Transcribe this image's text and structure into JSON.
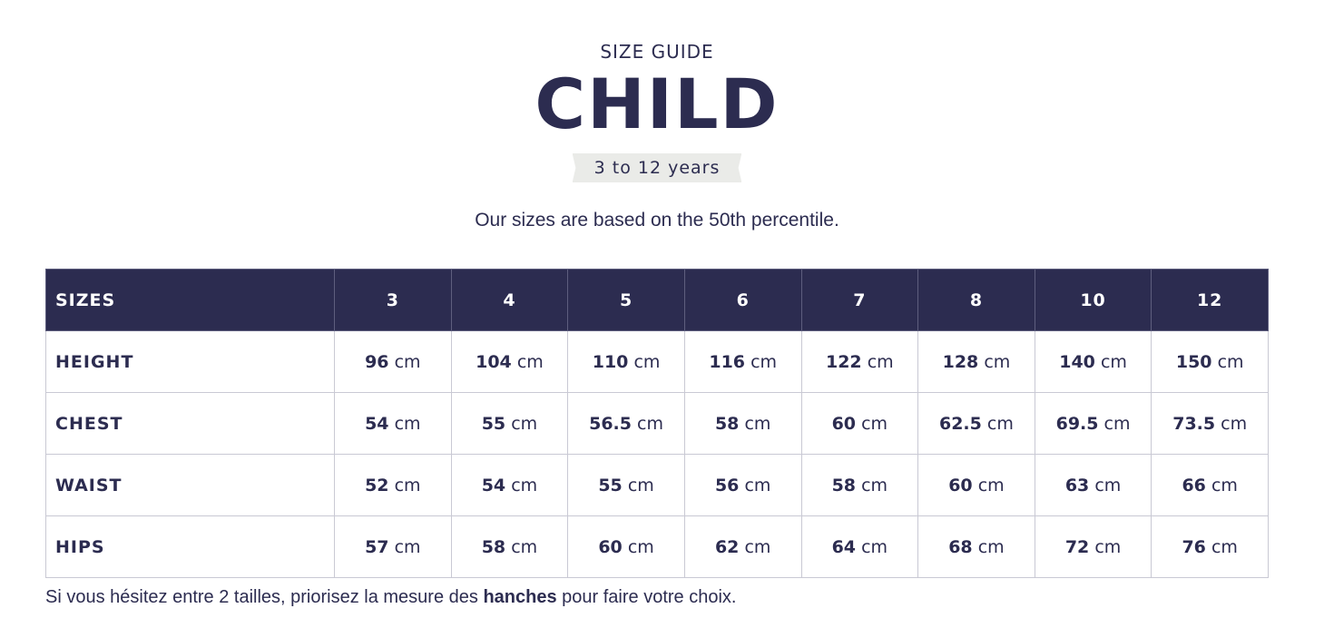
{
  "header": {
    "kicker": "SIZE GUIDE",
    "title": "CHILD",
    "age_range": "3 to 12 years",
    "intro": "Our sizes are based on the 50th percentile."
  },
  "table": {
    "header_label": "SIZES",
    "unit": "cm",
    "columns": [
      "3",
      "4",
      "5",
      "6",
      "7",
      "8",
      "10",
      "12"
    ],
    "rows": [
      {
        "label": "HEIGHT",
        "values": [
          "96",
          "104",
          "110",
          "116",
          "122",
          "128",
          "140",
          "150"
        ]
      },
      {
        "label": "CHEST",
        "values": [
          "54",
          "55",
          "56.5",
          "58",
          "60",
          "62.5",
          "69.5",
          "73.5"
        ]
      },
      {
        "label": "WAIST",
        "values": [
          "52",
          "54",
          "55",
          "56",
          "58",
          "60",
          "63",
          "66"
        ]
      },
      {
        "label": "HIPS",
        "values": [
          "57",
          "58",
          "60",
          "62",
          "64",
          "68",
          "72",
          "76"
        ]
      }
    ]
  },
  "footnote": {
    "before": "Si vous hésitez entre 2 tailles, priorisez la mesure des ",
    "emphasis": "hanches",
    "after": " pour faire votre choix."
  },
  "colors": {
    "navy": "#2c2c50",
    "badge_bg": "#eaebe8",
    "border": "#c9c9d4"
  }
}
